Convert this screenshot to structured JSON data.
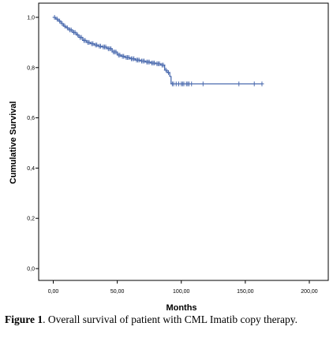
{
  "chart_data": {
    "type": "line",
    "title": "",
    "xlabel": "Months",
    "ylabel": "Cumulative Survival",
    "xlim": [
      0,
      200
    ],
    "ylim": [
      0,
      1
    ],
    "x_ticks": [
      0,
      50,
      100,
      150,
      200
    ],
    "x_tick_labels": [
      "0,00",
      "50,00",
      "100,00",
      "150,00",
      "200,00"
    ],
    "y_ticks": [
      0,
      0.2,
      0.4,
      0.6,
      0.8,
      1
    ],
    "y_tick_labels": [
      "0,0",
      "0,2",
      "0,4",
      "0,6",
      "0,8",
      "1,0"
    ],
    "grid": false,
    "legend": "none",
    "line_color": "#4a6aae",
    "series": [
      {
        "x": [
          0,
          2,
          4,
          6,
          8,
          10,
          12,
          15,
          18,
          20,
          23,
          26,
          29,
          32,
          35,
          38,
          42,
          46,
          50,
          53,
          56,
          60,
          64,
          68,
          72,
          76,
          80,
          84,
          87,
          89,
          91,
          92,
          95,
          100,
          105,
          110,
          120,
          130,
          145,
          160,
          163
        ],
        "y": [
          1,
          0.993,
          0.985,
          0.975,
          0.965,
          0.958,
          0.95,
          0.94,
          0.93,
          0.92,
          0.908,
          0.9,
          0.895,
          0.89,
          0.885,
          0.882,
          0.875,
          0.862,
          0.85,
          0.845,
          0.84,
          0.835,
          0.83,
          0.826,
          0.822,
          0.818,
          0.815,
          0.81,
          0.79,
          0.78,
          0.765,
          0.735,
          0.735,
          0.735,
          0.735,
          0.735,
          0.735,
          0.735,
          0.735,
          0.735,
          0.735
        ],
        "censored_x": [
          1,
          3,
          5,
          7,
          9,
          11,
          13,
          14,
          16,
          17,
          19,
          21,
          22,
          24,
          25,
          27,
          28,
          30,
          31,
          33,
          34,
          36,
          37,
          39,
          40,
          41,
          43,
          44,
          45,
          47,
          48,
          49,
          51,
          52,
          54,
          55,
          57,
          58,
          59,
          61,
          62,
          63,
          65,
          66,
          67,
          69,
          70,
          71,
          73,
          74,
          75,
          77,
          78,
          79,
          81,
          82,
          83,
          85,
          86,
          88,
          90,
          93,
          94,
          96,
          98,
          100,
          101,
          102,
          104,
          105,
          106,
          108,
          117,
          145,
          157,
          163
        ]
      }
    ]
  },
  "caption": {
    "label": "Figure 1",
    "text": ". Overall survival of patient with CML Imatib copy therapy."
  }
}
